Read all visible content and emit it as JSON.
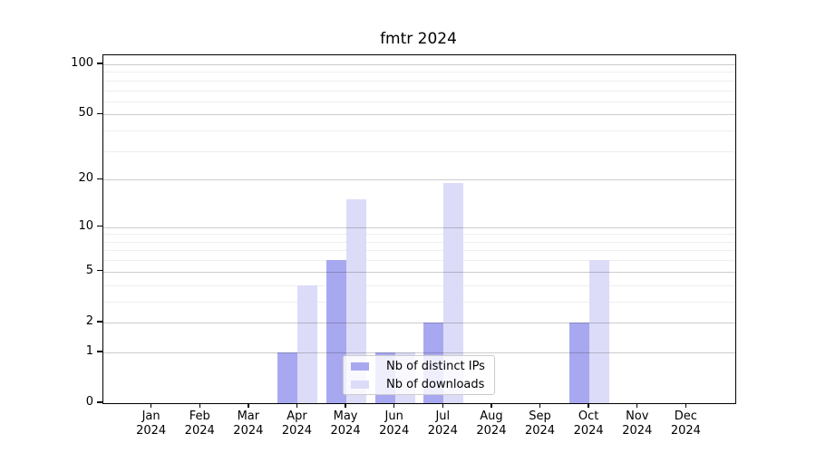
{
  "figure": {
    "title": "fmtr 2024"
  },
  "chart_data": {
    "type": "bar",
    "title": "fmtr 2024",
    "categories": [
      "Jan 2024",
      "Feb 2024",
      "Mar 2024",
      "Apr 2024",
      "May 2024",
      "Jun 2024",
      "Jul 2024",
      "Aug 2024",
      "Sep 2024",
      "Oct 2024",
      "Nov 2024",
      "Dec 2024"
    ],
    "series": [
      {
        "name": "Nb of distinct IPs",
        "color": "#a8a8f0",
        "values": [
          0,
          0,
          0,
          1,
          6,
          1,
          2,
          0,
          0,
          2,
          0,
          0
        ]
      },
      {
        "name": "Nb of downloads",
        "color": "#dcdcf8",
        "values": [
          0,
          0,
          0,
          4,
          15,
          1,
          19,
          0,
          0,
          6,
          0,
          0
        ]
      }
    ],
    "xlabel": "",
    "ylabel": "",
    "yscale": "log1p",
    "ylim": [
      0,
      113
    ],
    "yticks": [
      100,
      50,
      20,
      10,
      5,
      2,
      1,
      0
    ],
    "minor_yticks": [
      3,
      4,
      6,
      7,
      8,
      9,
      30,
      40,
      60,
      70,
      80,
      90
    ],
    "grid": true,
    "legend_position": "lower center"
  },
  "colors": {
    "background": "#ffffff",
    "spine": "#000000",
    "grid_major": "rgba(0,0,0,0.20)",
    "grid_minor": "rgba(0,0,0,0.065)",
    "legend_border": "#cccccc"
  }
}
